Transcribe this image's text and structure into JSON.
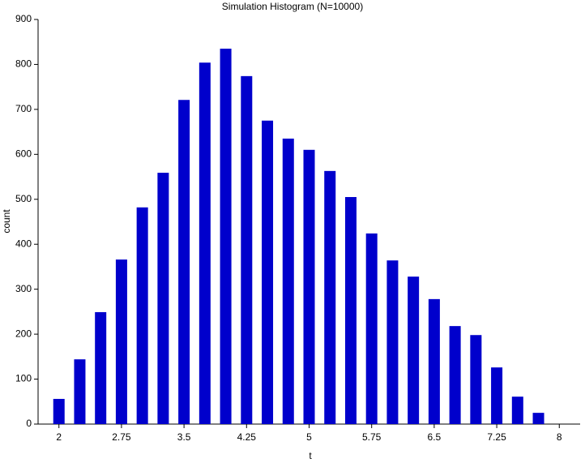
{
  "chart_data": {
    "type": "bar",
    "title": "Simulation Histogram (N=10000)",
    "x_label": "t",
    "y_label": "count",
    "x": [
      2,
      2.25,
      2.5,
      2.75,
      3,
      3.25,
      3.5,
      3.75,
      4,
      4.25,
      4.5,
      4.75,
      5,
      5.25,
      5.5,
      5.75,
      6,
      6.25,
      6.5,
      6.75,
      7,
      7.25,
      7.5,
      7.75
    ],
    "values": [
      56,
      144,
      249,
      366,
      482,
      559,
      721,
      804,
      835,
      774,
      675,
      635,
      610,
      563,
      505,
      424,
      364,
      328,
      278,
      218,
      198,
      126,
      61,
      25
    ],
    "color": "#0000cc",
    "xlim": [
      1.75,
      8.25
    ],
    "xticks": [
      2,
      2.75,
      3.5,
      4.25,
      5,
      5.75,
      6.5,
      7.25,
      8
    ],
    "ylim": [
      0,
      900
    ],
    "yticks": [
      0,
      100,
      200,
      300,
      400,
      500,
      600,
      700,
      800,
      900
    ],
    "grid": false
  }
}
